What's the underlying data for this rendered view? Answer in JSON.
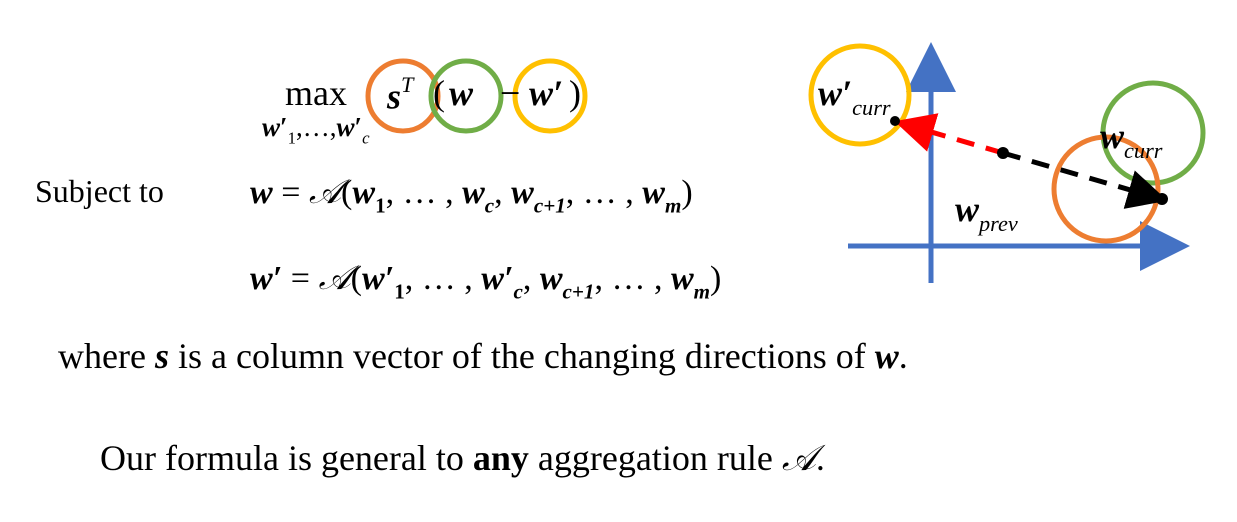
{
  "objective": {
    "operator": "max",
    "max_subscript": {
      "w1": "w",
      "prime": "′",
      "sub1": "1",
      "dots": ",…,",
      "wc": "w",
      "primec": "′",
      "subc": "c"
    },
    "s_term": {
      "base": "s",
      "sup": "T"
    },
    "open_paren": "(",
    "w_term": "w",
    "minus": "−",
    "w_prime_term": "w′",
    "close_paren": ")"
  },
  "constraint_label": "Subject to",
  "constraint_1": {
    "lhs": "w",
    "eq": " = ",
    "agg": "𝒜",
    "open": "(",
    "w1": "w",
    "s1": "1",
    "sep1": ", … , ",
    "wc": "w",
    "sc": "c",
    "comma": ", ",
    "wc1": "w",
    "sc1": "c+1",
    "sep2": ", … , ",
    "wm": "w",
    "sm": "m",
    "close": ")"
  },
  "constraint_2": {
    "lhs": "w′",
    "eq": " = ",
    "agg": "𝒜",
    "open": "(",
    "w1": "w′",
    "s1": "1",
    "sep1": ", … , ",
    "wc": "w′",
    "sc": "c",
    "comma": ", ",
    "wc1": "w",
    "sc1": "c+1",
    "sep2": ", … , ",
    "wm": "w",
    "sm": "m",
    "close": ")"
  },
  "note": {
    "prefix": "where ",
    "s": "s",
    "middle": " is a column vector of the changing directions of ",
    "w": "w",
    "end": "."
  },
  "summary": {
    "prefix": "Our formula is general to ",
    "bold": "any",
    "middle": " aggregation rule ",
    "agg": "𝒜",
    "end": "."
  },
  "diagram_labels": {
    "w_curr_prime": {
      "base": "w′",
      "sub": "curr"
    },
    "w_curr": {
      "base": "w",
      "sub": "curr"
    },
    "w_prev": {
      "base": "w",
      "sub": "prev"
    }
  },
  "colors": {
    "orange": "#ED7D31",
    "green": "#70AD47",
    "yellow": "#FFC000",
    "blue_axis": "#4472C4",
    "red_arrow": "#FF0000",
    "black": "#000000"
  }
}
